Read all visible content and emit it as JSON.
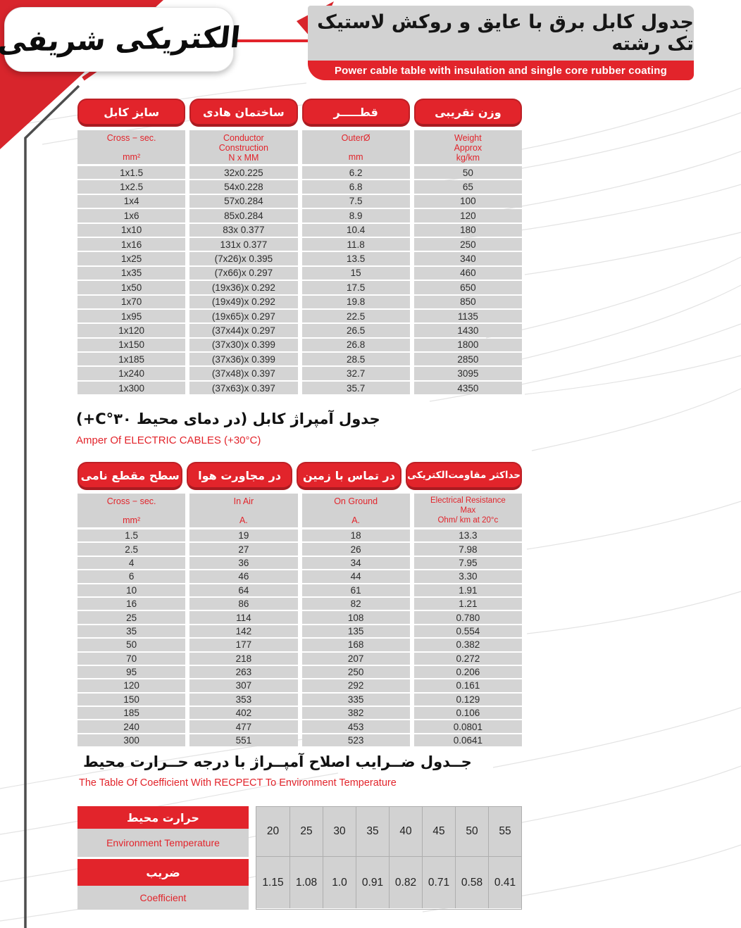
{
  "colors": {
    "red": "#e2242b",
    "dark_red": "#a91b21",
    "header_gray": "#d2d2d2",
    "cell_gray": "#d4d4d4"
  },
  "logo": {
    "text": "الکتریکی شریفی"
  },
  "header": {
    "title_fa": "جدول کابل برق با عایق و روکش لاستیک تک رشته",
    "subtitle_en": "Power cable table with insulation and single core rubber coating"
  },
  "table1": {
    "columns": [
      {
        "fa": "سایز کابل",
        "sub": [
          "Cross − sec.",
          "mm²"
        ]
      },
      {
        "fa": "ساختمان هادی",
        "sub": [
          "Conductor",
          "Construction",
          "N x MM"
        ]
      },
      {
        "fa": "قطـــــر",
        "sub": [
          "OuterØ",
          "mm"
        ]
      },
      {
        "fa": "وزن تقریبی",
        "sub": [
          "Weight",
          "Approx",
          "kg/km"
        ]
      }
    ],
    "rows": [
      [
        "1x1.5",
        "32x0.225",
        "6.2",
        "50"
      ],
      [
        "1x2.5",
        "54x0.228",
        "6.8",
        "65"
      ],
      [
        "1x4",
        "57x0.284",
        "7.5",
        "100"
      ],
      [
        "1x6",
        "85x0.284",
        "8.9",
        "120"
      ],
      [
        "1x10",
        "83x 0.377",
        "10.4",
        "180"
      ],
      [
        "1x16",
        "131x 0.377",
        "11.8",
        "250"
      ],
      [
        "1x25",
        "(7x26)x 0.395",
        "13.5",
        "340"
      ],
      [
        "1x35",
        "(7x66)x 0.297",
        "15",
        "460"
      ],
      [
        "1x50",
        "(19x36)x 0.292",
        "17.5",
        "650"
      ],
      [
        "1x70",
        "(19x49)x 0.292",
        "19.8",
        "850"
      ],
      [
        "1x95",
        "(19x65)x 0.297",
        "22.5",
        "1135"
      ],
      [
        "1x120",
        "(37x44)x 0.297",
        "26.5",
        "1430"
      ],
      [
        "1x150",
        "(37x30)x 0.399",
        "26.8",
        "1800"
      ],
      [
        "1x185",
        "(37x36)x 0.399",
        "28.5",
        "2850"
      ],
      [
        "1x240",
        "(37x48)x 0.397",
        "32.7",
        "3095"
      ],
      [
        "1x300",
        "(37x63)x 0.397",
        "35.7",
        "4350"
      ]
    ]
  },
  "section2": {
    "title_fa": "جدول آمپراژ کابل (در دمای محیط C°۳۰+)",
    "title_en": "Amper Of ELECTRIC CABLES (+30°C)"
  },
  "table2": {
    "columns": [
      {
        "fa": "سطح مقطع نامی",
        "sub": [
          "Cross − sec.",
          "mm²"
        ]
      },
      {
        "fa": "در مجاورت هوا",
        "sub": [
          "In Air",
          "A."
        ]
      },
      {
        "fa": "در تماس با زمین",
        "sub": [
          "On Ground",
          "A."
        ]
      },
      {
        "fa": "حداکثر مقاومت‌الکتریکی",
        "sub": [
          "Electrical Resistance",
          "Max",
          "Ohm/ km at 20°c"
        ]
      }
    ],
    "rows": [
      [
        "1.5",
        "19",
        "18",
        "13.3"
      ],
      [
        "2.5",
        "27",
        "26",
        "7.98"
      ],
      [
        "4",
        "36",
        "34",
        "7.95"
      ],
      [
        "6",
        "46",
        "44",
        "3.30"
      ],
      [
        "10",
        "64",
        "61",
        "1.91"
      ],
      [
        "16",
        "86",
        "82",
        "1.21"
      ],
      [
        "25",
        "114",
        "108",
        "0.780"
      ],
      [
        "35",
        "142",
        "135",
        "0.554"
      ],
      [
        "50",
        "177",
        "168",
        "0.382"
      ],
      [
        "70",
        "218",
        "207",
        "0.272"
      ],
      [
        "95",
        "263",
        "250",
        "0.206"
      ],
      [
        "120",
        "307",
        "292",
        "0.161"
      ],
      [
        "150",
        "353",
        "335",
        "0.129"
      ],
      [
        "185",
        "402",
        "382",
        "0.106"
      ],
      [
        "240",
        "477",
        "453",
        "0.0801"
      ],
      [
        "300",
        "551",
        "523",
        "0.0641"
      ]
    ]
  },
  "section3": {
    "title_fa": "جــدول ضــرایب اصلاح آمپــراژ با درجه حــرارت محیط",
    "title_en": "The Table Of Coefficient With RECPECT To Environment Temperature"
  },
  "table3": {
    "row1": {
      "fa": "حرارت محیط",
      "en": "Environment Temperature",
      "values": [
        "20",
        "25",
        "30",
        "35",
        "40",
        "45",
        "50",
        "55"
      ]
    },
    "row2": {
      "fa": "ضریب",
      "en": "Coefficient",
      "values": [
        "1.15",
        "1.08",
        "1.0",
        "0.91",
        "0.82",
        "0.71",
        "0.58",
        "0.41"
      ]
    }
  }
}
